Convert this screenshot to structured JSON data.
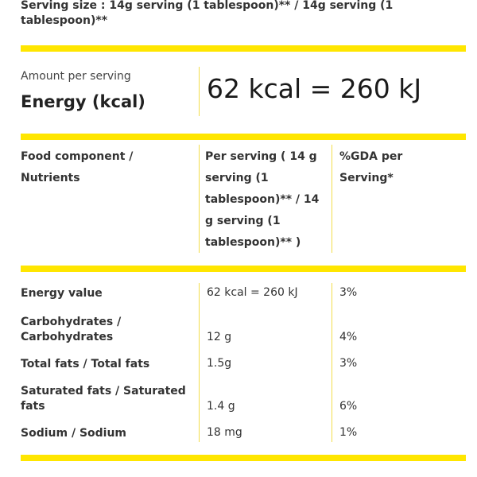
{
  "serving_size": "Serving size : 14g serving (1 tablespoon)** / 14g serving (1 tablespoon)**",
  "energy": {
    "amount_label": "Amount per serving",
    "label": "Energy (kcal)",
    "value": "62 kcal = 260 kJ"
  },
  "table": {
    "headers": {
      "component": "Food component / Nutrients",
      "per_serving": "Per serving ( 14 g serving (1 tablespoon)** / 14 g serving (1 tablespoon)** )",
      "gda": "%GDA per Serving*"
    },
    "rows": [
      {
        "name": "Energy value",
        "per_serving": "62 kcal = 260 kJ",
        "gda": "3%"
      },
      {
        "name": "Carbohydrates / Carbohydrates",
        "per_serving": "12 g",
        "gda": "4%"
      },
      {
        "name": "Total fats / Total fats",
        "per_serving": "1.5g",
        "gda": "3%"
      },
      {
        "name": "Saturated fats / Saturated fats",
        "per_serving": "1.4 g",
        "gda": "6%"
      },
      {
        "name": "Sodium / Sodium",
        "per_serving": "18 mg",
        "gda": "1%"
      }
    ]
  },
  "colors": {
    "accent": "#ffe600",
    "divider": "#f3dd4a",
    "text": "#333333"
  }
}
